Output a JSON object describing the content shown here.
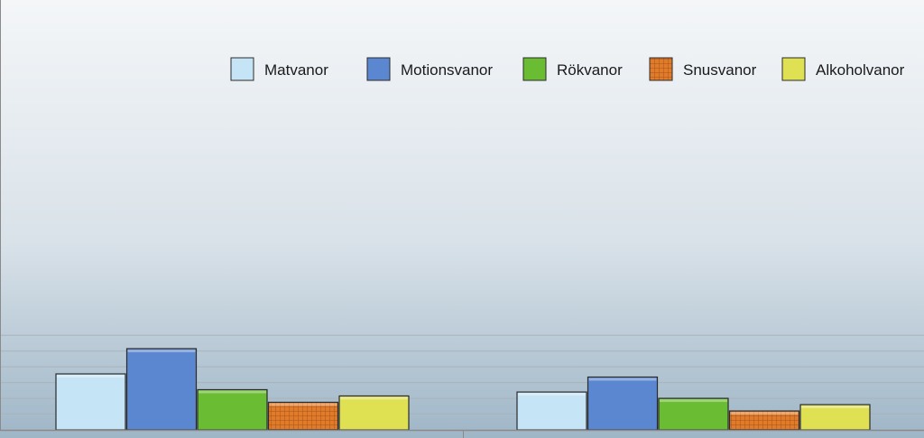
{
  "chart_data": {
    "type": "bar",
    "title": "",
    "xlabel": "",
    "ylabel": "",
    "categories": [
      "",
      ""
    ],
    "ylim": [
      0,
      100
    ],
    "grid": true,
    "legend_position": "top-right",
    "series": [
      {
        "name": "Matvanor",
        "values": [
          71,
          48
        ],
        "color": "#c5e4f5",
        "pattern": "solid"
      },
      {
        "name": "Motionsvanor",
        "values": [
          103,
          67
        ],
        "color": "#5b87d0",
        "pattern": "solid"
      },
      {
        "name": "Rökvanor",
        "values": [
          51,
          40
        ],
        "color": "#6abc32",
        "pattern": "solid"
      },
      {
        "name": "Snusvanor",
        "values": [
          35,
          24
        ],
        "color": "#e07b2a",
        "pattern": "grid"
      },
      {
        "name": "Alkoholvanor",
        "values": [
          43,
          32
        ],
        "color": "#dfe052",
        "pattern": "solid"
      }
    ]
  }
}
